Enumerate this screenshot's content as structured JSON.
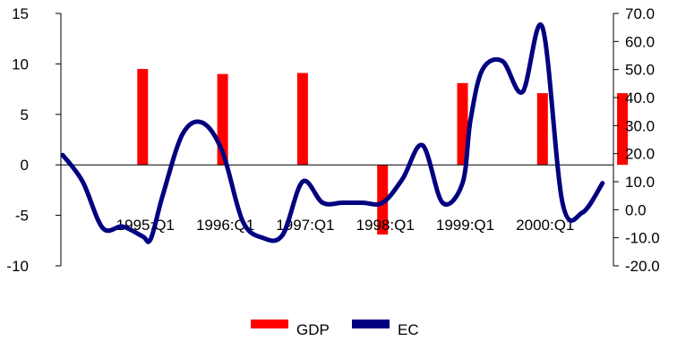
{
  "chart_data": {
    "type": "bar",
    "categories": [
      "1995:Q1",
      "1996:Q1",
      "1997:Q1",
      "1998:Q1",
      "1999:Q1",
      "2000:Q1"
    ],
    "y_left": {
      "lim": [
        -10,
        15
      ],
      "ticks": [
        "15",
        "10",
        "5",
        "0",
        "-5",
        "-10"
      ]
    },
    "y_right": {
      "lim": [
        -20,
        70
      ],
      "ticks": [
        "70.0",
        "60.0",
        "50.0",
        "40.0",
        "30.0",
        "20.0",
        "10.0",
        "0.0",
        "-10.0",
        "-20.0"
      ]
    },
    "grid": false,
    "legend_position": "bottom",
    "series": [
      {
        "name": "GDP",
        "type": "bar",
        "axis": "left",
        "color": "#ff0000",
        "x": [
          1995.0,
          1996.0,
          1997.0,
          1998.0,
          1999.0,
          2000.0,
          2001.0
        ],
        "values": [
          9.5,
          9.0,
          9.1,
          -6.9,
          8.1,
          7.1,
          7.1
        ]
      },
      {
        "name": "EC",
        "type": "line",
        "axis": "right",
        "color": "#000080",
        "x": [
          1994.0,
          1994.25,
          1994.5,
          1994.75,
          1995.0,
          1995.1,
          1995.25,
          1995.5,
          1995.75,
          1996.0,
          1996.25,
          1996.5,
          1996.75,
          1997.0,
          1997.25,
          1997.5,
          1997.75,
          1998.0,
          1998.25,
          1998.5,
          1998.75,
          1999.0,
          1999.1,
          1999.25,
          1999.5,
          1999.75,
          2000.0,
          2000.25,
          2000.5,
          2000.75
        ],
        "values": [
          19.5,
          10.0,
          -6.5,
          -6.0,
          -9.5,
          -10.5,
          5.0,
          27.0,
          31.0,
          20.5,
          -4.0,
          -10.0,
          -9.0,
          10.0,
          2.5,
          2.5,
          2.5,
          2.5,
          11.0,
          23.0,
          2.5,
          9.5,
          32.0,
          50.0,
          53.0,
          42.0,
          65.0,
          2.5,
          -1.0,
          9.5
        ]
      }
    ]
  },
  "legend": [
    {
      "label": "GDP",
      "color": "#ff0000",
      "shape": "bar"
    },
    {
      "label": "EC",
      "color": "#000080",
      "shape": "line"
    }
  ]
}
